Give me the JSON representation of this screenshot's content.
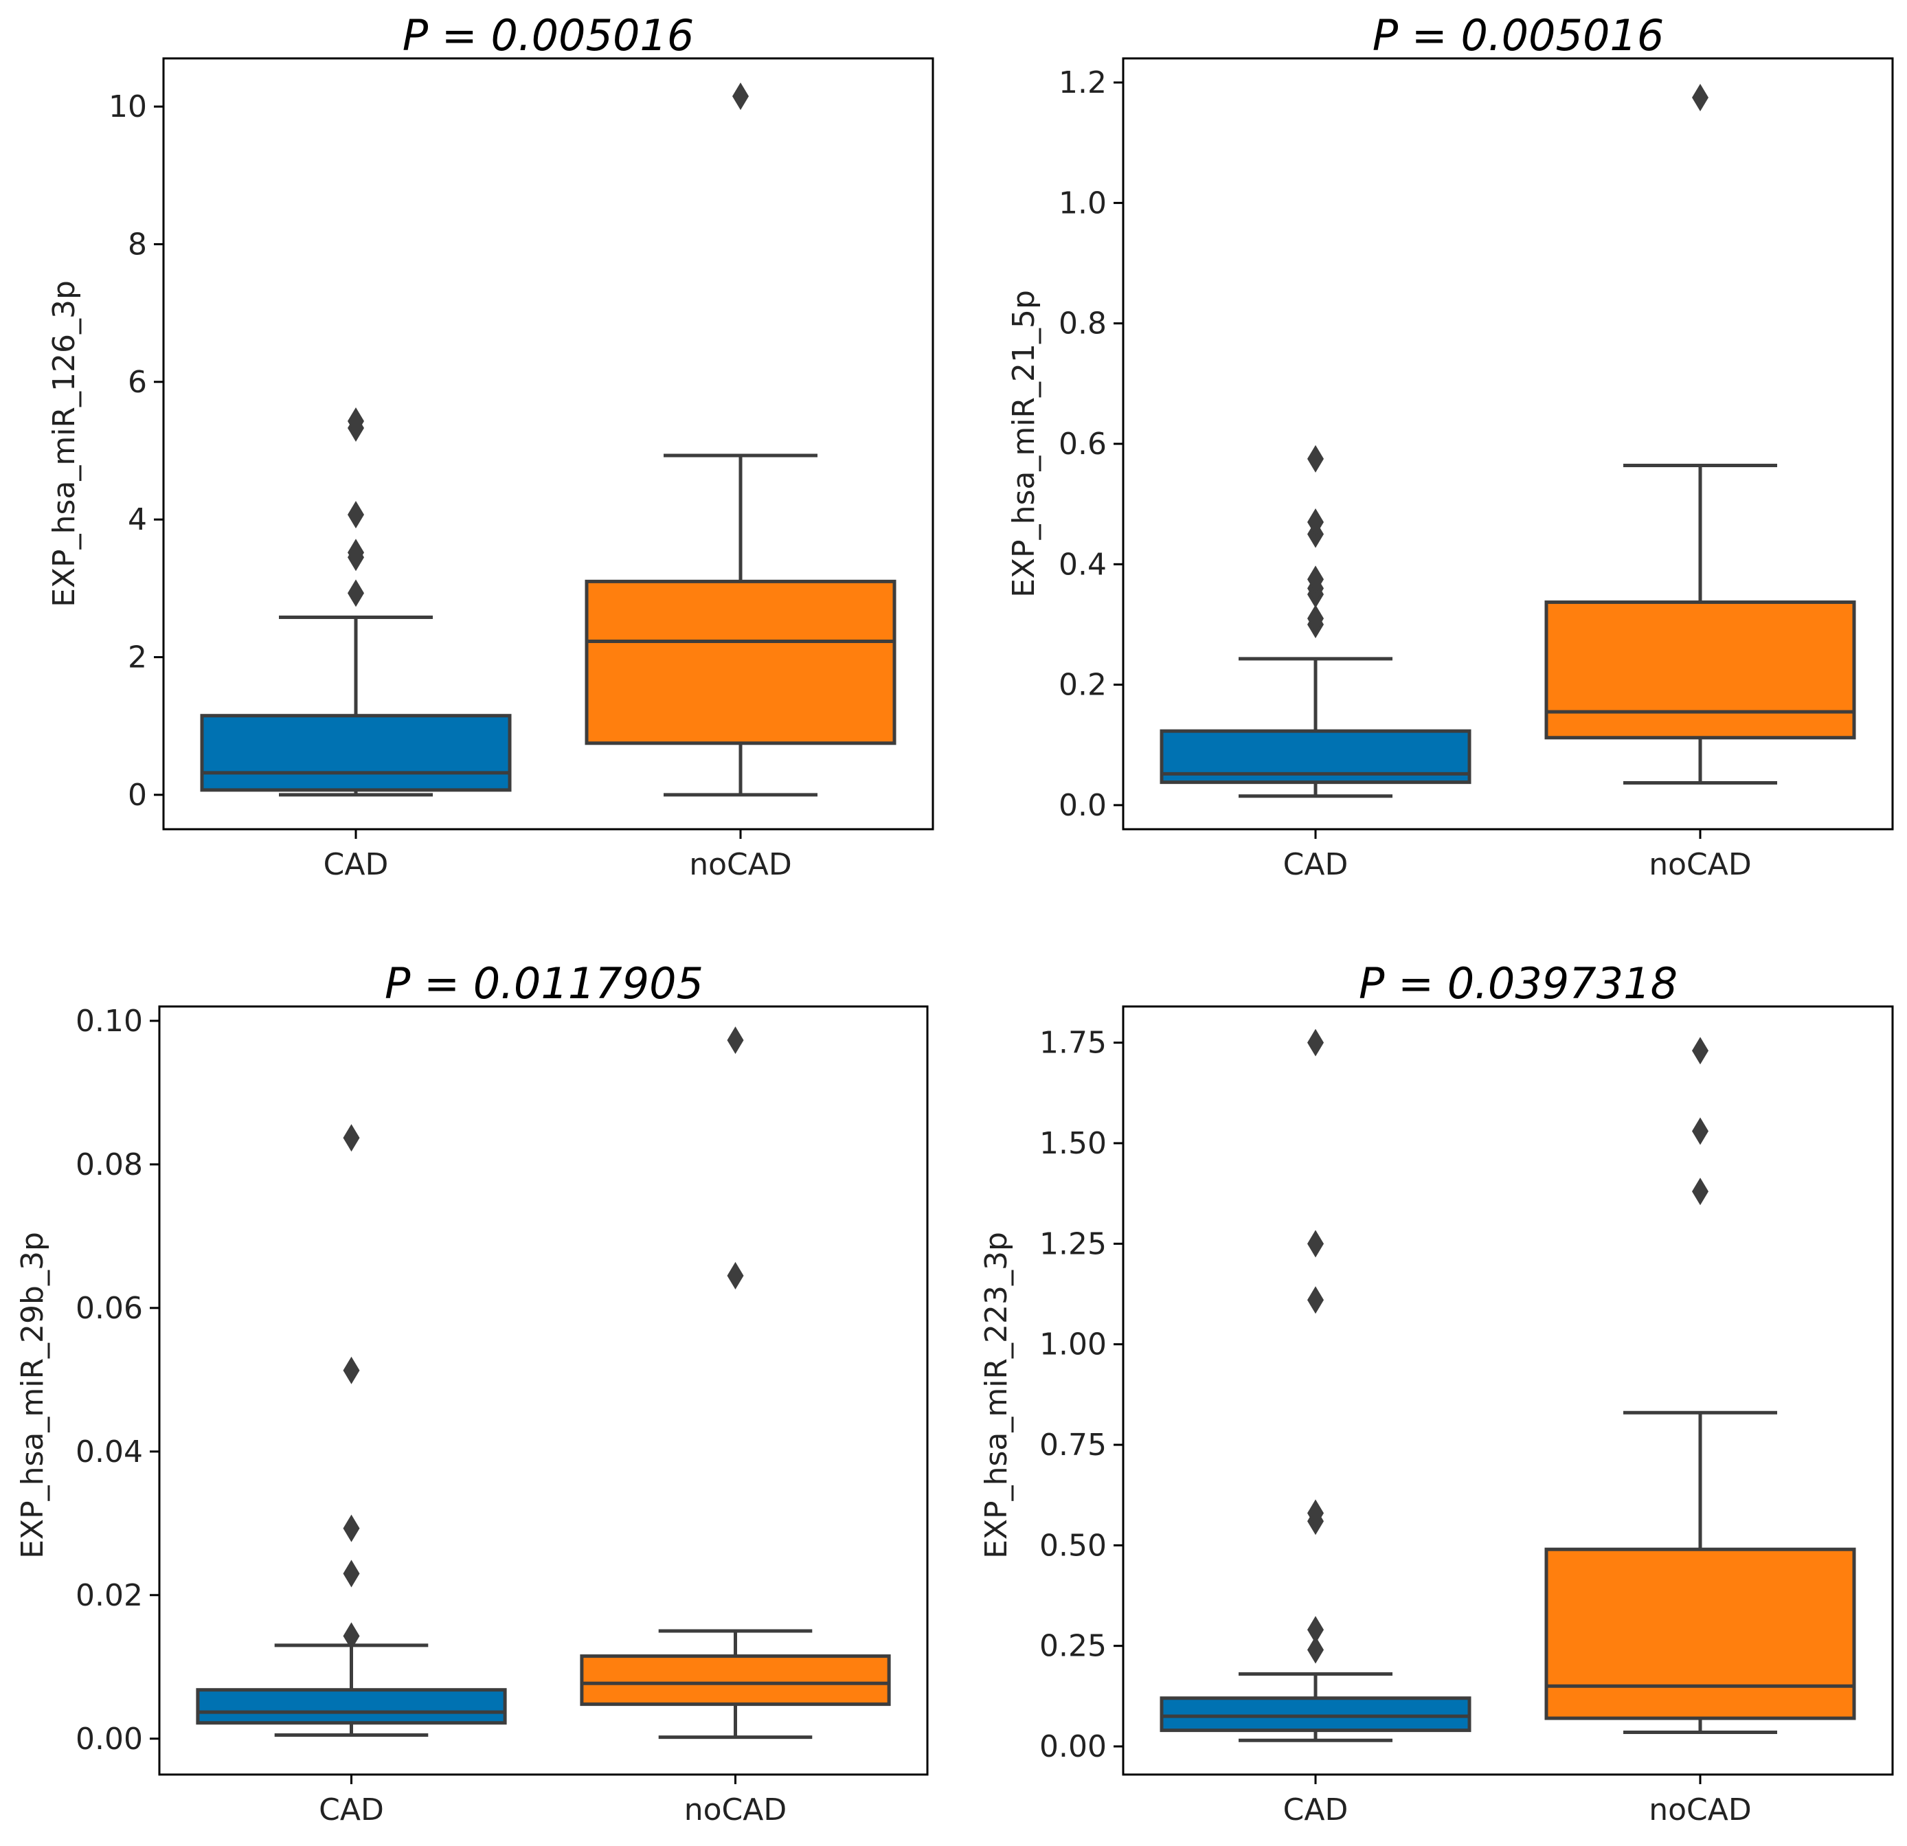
{
  "chart_data": [
    {
      "type": "box",
      "title": "P = 0.005016",
      "ylabel": "EXP_hsa_miR_126_3p",
      "categories": [
        "CAD",
        "noCAD"
      ],
      "ylim": [
        -0.5,
        10.7
      ],
      "yticks": [
        0,
        2,
        4,
        6,
        8,
        10
      ],
      "ytick_labels": [
        "0",
        "2",
        "4",
        "6",
        "8",
        "10"
      ],
      "boxes": [
        {
          "category": "CAD",
          "color": "#0072b2",
          "whisker_low": 0.0,
          "q1": 0.07,
          "median": 0.32,
          "q3": 1.15,
          "whisker_high": 2.58,
          "outliers": [
            2.93,
            3.45,
            3.52,
            4.07,
            5.33,
            5.43
          ]
        },
        {
          "category": "noCAD",
          "color": "#ff7f0e",
          "whisker_low": 0.0,
          "q1": 0.75,
          "median": 2.23,
          "q3": 3.1,
          "whisker_high": 4.93,
          "outliers": [
            10.15
          ]
        }
      ]
    },
    {
      "type": "box",
      "title": "P = 0.005016",
      "ylabel": "EXP_hsa_miR_21_5p",
      "categories": [
        "CAD",
        "noCAD"
      ],
      "ylim": [
        -0.04,
        1.24
      ],
      "yticks": [
        0.0,
        0.2,
        0.4,
        0.6,
        0.8,
        1.0,
        1.2
      ],
      "ytick_labels": [
        "0.0",
        "0.2",
        "0.4",
        "0.6",
        "0.8",
        "1.0",
        "1.2"
      ],
      "boxes": [
        {
          "category": "CAD",
          "color": "#0072b2",
          "whisker_low": 0.015,
          "q1": 0.038,
          "median": 0.052,
          "q3": 0.123,
          "whisker_high": 0.243,
          "outliers": [
            0.3,
            0.31,
            0.35,
            0.36,
            0.375,
            0.45,
            0.47,
            0.575
          ]
        },
        {
          "category": "noCAD",
          "color": "#ff7f0e",
          "whisker_low": 0.037,
          "q1": 0.112,
          "median": 0.155,
          "q3": 0.337,
          "whisker_high": 0.564,
          "outliers": [
            1.175
          ]
        }
      ]
    },
    {
      "type": "box",
      "title": "P = 0.0117905",
      "ylabel": "EXP_hsa_miR_29b_3p",
      "categories": [
        "CAD",
        "noCAD"
      ],
      "ylim": [
        -0.005,
        0.102
      ],
      "yticks": [
        0.0,
        0.02,
        0.04,
        0.06,
        0.08,
        0.1
      ],
      "ytick_labels": [
        "0.00",
        "0.02",
        "0.04",
        "0.06",
        "0.08",
        "0.10"
      ],
      "boxes": [
        {
          "category": "CAD",
          "color": "#0072b2",
          "whisker_low": 0.0005,
          "q1": 0.0022,
          "median": 0.0037,
          "q3": 0.0068,
          "whisker_high": 0.013,
          "outliers": [
            0.0143,
            0.023,
            0.0293,
            0.0513,
            0.0837
          ]
        },
        {
          "category": "noCAD",
          "color": "#ff7f0e",
          "whisker_low": 0.0002,
          "q1": 0.0048,
          "median": 0.0077,
          "q3": 0.0115,
          "whisker_high": 0.015,
          "outliers": [
            0.0645,
            0.0973
          ]
        }
      ]
    },
    {
      "type": "box",
      "title": "P = 0.0397318",
      "ylabel": "EXP_hsa_miR_223_3p",
      "categories": [
        "CAD",
        "noCAD"
      ],
      "ylim": [
        -0.07,
        1.84
      ],
      "yticks": [
        0.0,
        0.25,
        0.5,
        0.75,
        1.0,
        1.25,
        1.5,
        1.75
      ],
      "ytick_labels": [
        "0.00",
        "0.25",
        "0.50",
        "0.75",
        "1.00",
        "1.25",
        "1.50",
        "1.75"
      ],
      "boxes": [
        {
          "category": "CAD",
          "color": "#0072b2",
          "whisker_low": 0.015,
          "q1": 0.04,
          "median": 0.075,
          "q3": 0.12,
          "whisker_high": 0.18,
          "outliers": [
            0.24,
            0.29,
            0.56,
            0.58,
            1.11,
            1.25,
            1.75
          ]
        },
        {
          "category": "noCAD",
          "color": "#ff7f0e",
          "whisker_low": 0.035,
          "q1": 0.07,
          "median": 0.15,
          "q3": 0.49,
          "whisker_high": 0.83,
          "outliers": [
            1.38,
            1.53,
            1.73
          ]
        }
      ]
    }
  ]
}
